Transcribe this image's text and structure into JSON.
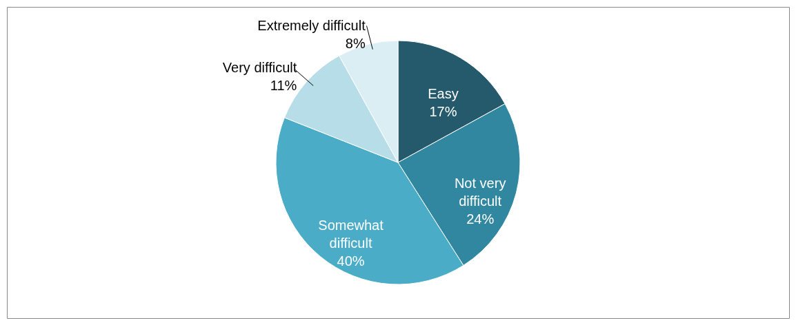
{
  "chart_data": {
    "type": "pie",
    "categories": [
      "Easy",
      "Not very difficult",
      "Somewhat difficult",
      "Very difficult",
      "Extremely difficult"
    ],
    "values": [
      17,
      24,
      40,
      11,
      8
    ],
    "value_labels": [
      "17%",
      "24%",
      "40%",
      "11%",
      "8%"
    ],
    "colors": [
      "#245a6b",
      "#31879f",
      "#4aacc6",
      "#b7dde8",
      "#dbeef4"
    ],
    "legend": false
  }
}
